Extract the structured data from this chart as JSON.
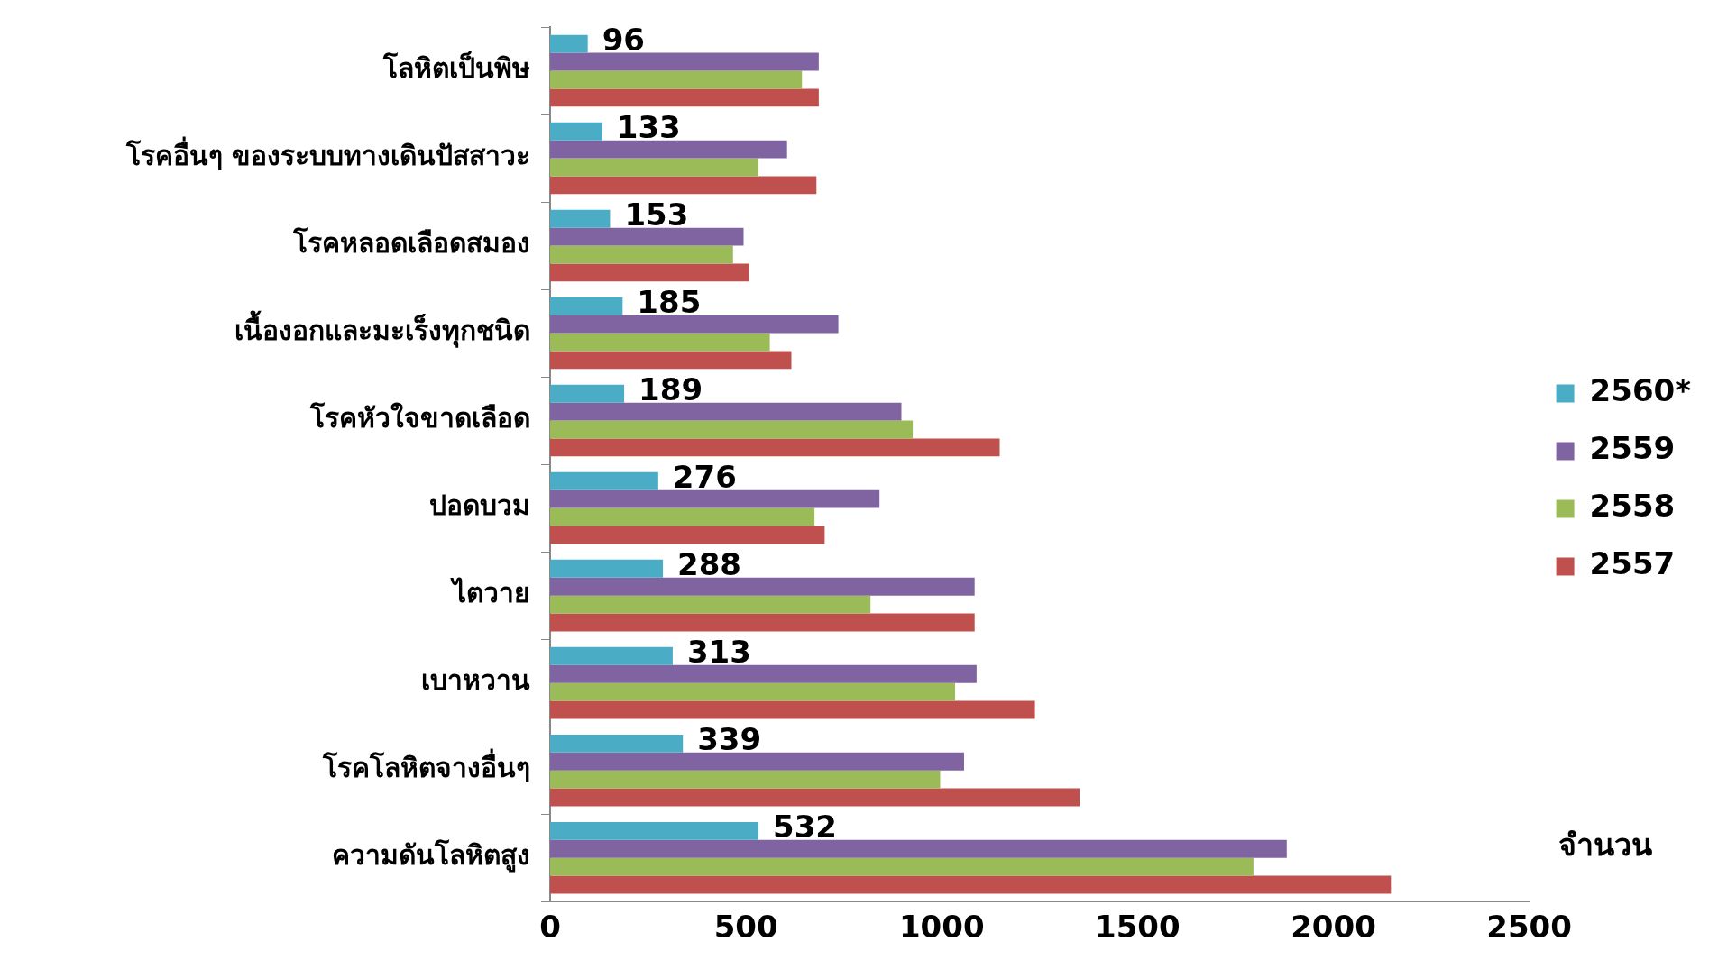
{
  "chart_data": {
    "type": "bar",
    "orientation": "horizontal",
    "xlabel": "จำนวน",
    "categories": [
      "โลหิตเป็นพิษ",
      "โรคอื่นๆ ของระบบทางเดินปัสสาวะ",
      "โรคหลอดเลือดสมอง",
      "เนื้องอกและมะเร็งทุกชนิด",
      "โรคหัวใจขาดเลือด",
      "ปอดบวม",
      "ไตวาย",
      "เบาหวาน",
      "โรคโลหิตจางอื่นๆ",
      "ความดันโลหิตสูง"
    ],
    "series": [
      {
        "name": "2560*",
        "color": "#4bacc6",
        "values": [
          96,
          133,
          153,
          185,
          189,
          276,
          288,
          313,
          339,
          532
        ],
        "value_labels": [
          "96",
          "133",
          "153",
          "185",
          "189",
          "276",
          "288",
          "313",
          "339",
          "532"
        ]
      },
      {
        "name": "2559",
        "color": "#8064a2",
        "values": [
          686,
          605,
          494,
          736,
          897,
          841,
          1084,
          1089,
          1057,
          1881
        ]
      },
      {
        "name": "2558",
        "color": "#9bbb59",
        "values": [
          643,
          532,
          467,
          561,
          926,
          675,
          818,
          1034,
          996,
          1796
        ]
      },
      {
        "name": "2557",
        "color": "#c0504d",
        "values": [
          686,
          680,
          508,
          616,
          1148,
          701,
          1084,
          1238,
          1352,
          2147
        ]
      }
    ],
    "xlim": [
      0,
      2500
    ],
    "xticks": [
      0,
      500,
      1000,
      1500,
      2000,
      2500
    ],
    "grid": false,
    "legend": "right"
  }
}
